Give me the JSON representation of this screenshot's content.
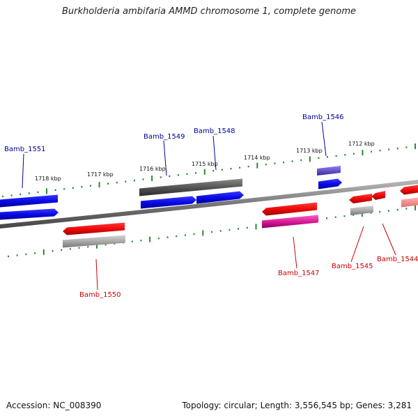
{
  "title": "Burkholderia ambifaria AMMD chromosome 1, complete genome",
  "footer": {
    "accession_label": "Accession:",
    "accession": "NC_008390",
    "topology_text": "Topology: circular; Length: 3,556,545 bp; Genes: 3,281"
  },
  "colors": {
    "forward_gene": "#1010ee",
    "reverse_gene": "#ee1010",
    "rrna": "#dd1a9a",
    "pseudogene": "#6655cc",
    "gray_feature": "#a8a8a8",
    "dark_feature": "#555555",
    "backbone": "#777777",
    "tick": "#2a8a2a",
    "forward_label": "#000099",
    "reverse_label": "#cc0000"
  },
  "kbp_ticks": [
    "1718 kbp",
    "1717 kbp",
    "1716 kbp",
    "1715 kbp",
    "1714 kbp",
    "1713 kbp",
    "1712 kbp"
  ],
  "forward_labels": [
    "Bamb_1551",
    "Bamb_1549",
    "Bamb_1548",
    "Bamb_1546"
  ],
  "reverse_labels": [
    "Bamb_1550",
    "Bamb_1547",
    "Bamb_1545",
    "Bamb_1544"
  ]
}
